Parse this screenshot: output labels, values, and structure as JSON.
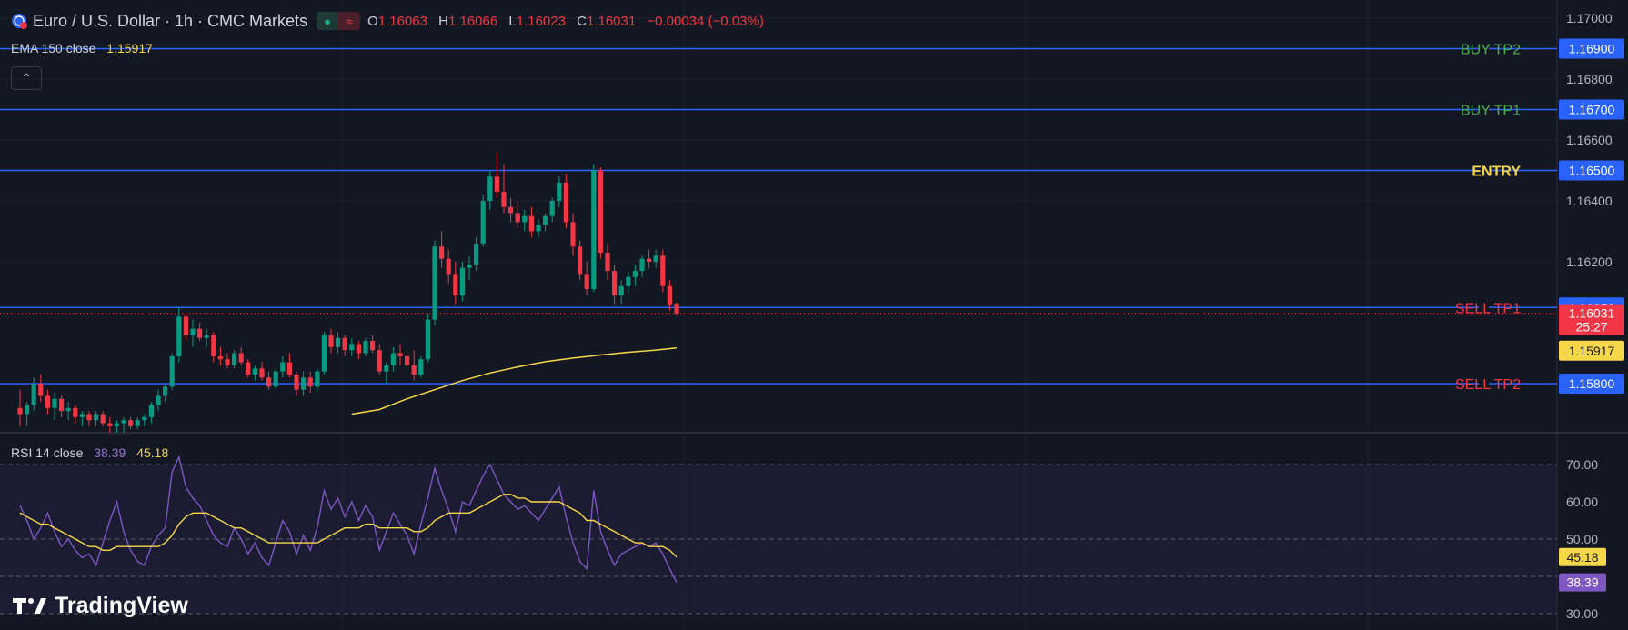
{
  "header": {
    "title": "Euro / U.S. Dollar · 1h · CMC Markets",
    "market_icon": "globe-dollar-icon",
    "open_label": "O",
    "open": "1.16063",
    "high_label": "H",
    "high": "1.16066",
    "low_label": "L",
    "low": "1.16023",
    "close_label": "C",
    "close": "1.16031",
    "change": "−0.00034 (−0.03%)"
  },
  "ema_legend": {
    "label": "EMA 150 close",
    "value": "1.15917"
  },
  "rsi_legend": {
    "label": "RSI 14 close",
    "rsi_value": "38.39",
    "ma_value": "45.18"
  },
  "branding": {
    "name": "TradingView"
  },
  "colors": {
    "background": "#131722",
    "up": "#089981",
    "down": "#f23645",
    "ema": "#f7d74a",
    "level_line": "#2962ff",
    "rsi": "#7e57c2",
    "rsi_ma": "#f7d74a",
    "buy_label": "#4caf50",
    "sell_label": "#f23645",
    "entry_label": "#f7d74a"
  },
  "chart_data": [
    {
      "type": "candlestick",
      "title": "Euro / U.S. Dollar · 1h · CMC Markets",
      "ylim": [
        1.157,
        1.1702
      ],
      "price_ticks": [
        "1.17000",
        "1.16800",
        "1.16600",
        "1.16400",
        "1.16200"
      ],
      "price_tick_values": [
        1.17,
        1.168,
        1.166,
        1.164,
        1.162
      ],
      "levels": [
        {
          "label": "BUY TP2",
          "value": "1.16900",
          "kind": "buy"
        },
        {
          "label": "BUY TP1",
          "value": "1.16700",
          "kind": "buy"
        },
        {
          "label": "ENTRY",
          "value": "1.16500",
          "kind": "entry"
        },
        {
          "label": "SELL TP1",
          "value": "1.16050",
          "kind": "sell"
        },
        {
          "label": "SELL TP2",
          "value": "1.15800",
          "kind": "sell"
        }
      ],
      "current_price": {
        "value": "1.16031",
        "countdown": "25:27"
      },
      "ema": {
        "name": "EMA 150 close",
        "last": "1.15917",
        "points": [
          [
            48,
            1.157
          ],
          [
            52,
            1.15715
          ],
          [
            56,
            1.1575
          ],
          [
            60,
            1.1578
          ],
          [
            64,
            1.1581
          ],
          [
            68,
            1.15835
          ],
          [
            72,
            1.15855
          ],
          [
            76,
            1.15872
          ],
          [
            80,
            1.15884
          ],
          [
            84,
            1.15894
          ],
          [
            88,
            1.15903
          ],
          [
            92,
            1.1591
          ],
          [
            95,
            1.15917
          ]
        ]
      },
      "candles": [
        [
          1.1572,
          1.1578,
          1.1566,
          1.157
        ],
        [
          1.157,
          1.1574,
          1.1566,
          1.1573
        ],
        [
          1.1573,
          1.1582,
          1.1571,
          1.158
        ],
        [
          1.158,
          1.1583,
          1.1574,
          1.1576
        ],
        [
          1.1576,
          1.1578,
          1.157,
          1.1572
        ],
        [
          1.1572,
          1.1577,
          1.1568,
          1.1575
        ],
        [
          1.1575,
          1.1576,
          1.1569,
          1.1571
        ],
        [
          1.1571,
          1.1574,
          1.1568,
          1.1572
        ],
        [
          1.1572,
          1.1573,
          1.1567,
          1.1569
        ],
        [
          1.1569,
          1.1571,
          1.1566,
          1.157
        ],
        [
          1.157,
          1.1571,
          1.1566,
          1.1568
        ],
        [
          1.1568,
          1.1571,
          1.1566,
          1.157
        ],
        [
          1.157,
          1.1571,
          1.1566,
          1.1567
        ],
        [
          1.1567,
          1.1569,
          1.1564,
          1.1566
        ],
        [
          1.1566,
          1.1568,
          1.1563,
          1.1567
        ],
        [
          1.1567,
          1.1569,
          1.1564,
          1.1568
        ],
        [
          1.1568,
          1.1569,
          1.1565,
          1.1566
        ],
        [
          1.1566,
          1.1569,
          1.1565,
          1.1568
        ],
        [
          1.1568,
          1.157,
          1.1566,
          1.1569
        ],
        [
          1.1569,
          1.1574,
          1.1567,
          1.1573
        ],
        [
          1.1573,
          1.1578,
          1.1571,
          1.1576
        ],
        [
          1.1576,
          1.158,
          1.1574,
          1.1579
        ],
        [
          1.1579,
          1.159,
          1.1578,
          1.1589
        ],
        [
          1.1589,
          1.1605,
          1.1587,
          1.1602
        ],
        [
          1.1602,
          1.1603,
          1.1594,
          1.1596
        ],
        [
          1.1596,
          1.1601,
          1.1592,
          1.1598
        ],
        [
          1.1598,
          1.16,
          1.1594,
          1.1595
        ],
        [
          1.1595,
          1.1598,
          1.1592,
          1.1596
        ],
        [
          1.1596,
          1.1597,
          1.1587,
          1.1589
        ],
        [
          1.1589,
          1.1592,
          1.1586,
          1.1588
        ],
        [
          1.1588,
          1.159,
          1.1585,
          1.1586
        ],
        [
          1.1586,
          1.1591,
          1.1585,
          1.159
        ],
        [
          1.159,
          1.1592,
          1.1586,
          1.1587
        ],
        [
          1.1587,
          1.1588,
          1.1582,
          1.1583
        ],
        [
          1.1583,
          1.1586,
          1.1581,
          1.1585
        ],
        [
          1.1585,
          1.1587,
          1.1581,
          1.1582
        ],
        [
          1.1582,
          1.1584,
          1.1578,
          1.1579
        ],
        [
          1.1579,
          1.1585,
          1.1578,
          1.1584
        ],
        [
          1.1584,
          1.1589,
          1.1582,
          1.1587
        ],
        [
          1.1587,
          1.159,
          1.1582,
          1.1583
        ],
        [
          1.1583,
          1.1584,
          1.1576,
          1.1578
        ],
        [
          1.1578,
          1.1584,
          1.1576,
          1.1582
        ],
        [
          1.1582,
          1.1584,
          1.1577,
          1.1579
        ],
        [
          1.1579,
          1.1585,
          1.1577,
          1.1584
        ],
        [
          1.1584,
          1.1597,
          1.1583,
          1.1596
        ],
        [
          1.1596,
          1.1598,
          1.159,
          1.1592
        ],
        [
          1.1592,
          1.1597,
          1.159,
          1.1595
        ],
        [
          1.1595,
          1.1596,
          1.1589,
          1.1591
        ],
        [
          1.1591,
          1.1595,
          1.1589,
          1.1593
        ],
        [
          1.1593,
          1.1594,
          1.1588,
          1.159
        ],
        [
          1.159,
          1.1595,
          1.1589,
          1.1594
        ],
        [
          1.1594,
          1.1596,
          1.159,
          1.1591
        ],
        [
          1.1591,
          1.1593,
          1.1583,
          1.1584
        ],
        [
          1.1584,
          1.1587,
          1.158,
          1.1586
        ],
        [
          1.1586,
          1.1592,
          1.1584,
          1.159
        ],
        [
          1.159,
          1.1593,
          1.1586,
          1.1589
        ],
        [
          1.1589,
          1.1591,
          1.1585,
          1.1586
        ],
        [
          1.1586,
          1.1591,
          1.1581,
          1.1583
        ],
        [
          1.1583,
          1.1589,
          1.1582,
          1.1588
        ],
        [
          1.1588,
          1.1603,
          1.1587,
          1.1601
        ],
        [
          1.1601,
          1.1627,
          1.1599,
          1.1625
        ],
        [
          1.1625,
          1.163,
          1.1618,
          1.1621
        ],
        [
          1.1621,
          1.1624,
          1.1613,
          1.1616
        ],
        [
          1.1616,
          1.162,
          1.1606,
          1.1609
        ],
        [
          1.1609,
          1.162,
          1.1607,
          1.1618
        ],
        [
          1.1618,
          1.1622,
          1.1614,
          1.1619
        ],
        [
          1.1619,
          1.1628,
          1.1617,
          1.1626
        ],
        [
          1.1626,
          1.1642,
          1.1625,
          1.164
        ],
        [
          1.164,
          1.165,
          1.1637,
          1.1648
        ],
        [
          1.1648,
          1.1656,
          1.1641,
          1.1643
        ],
        [
          1.1643,
          1.1652,
          1.1636,
          1.1638
        ],
        [
          1.1638,
          1.1641,
          1.1633,
          1.1636
        ],
        [
          1.1636,
          1.164,
          1.1631,
          1.1633
        ],
        [
          1.1633,
          1.1637,
          1.163,
          1.1635
        ],
        [
          1.1635,
          1.1638,
          1.1628,
          1.163
        ],
        [
          1.163,
          1.1634,
          1.1628,
          1.1632
        ],
        [
          1.1632,
          1.1636,
          1.163,
          1.1635
        ],
        [
          1.1635,
          1.1641,
          1.1633,
          1.164
        ],
        [
          1.164,
          1.1648,
          1.1638,
          1.1646
        ],
        [
          1.1646,
          1.1649,
          1.1631,
          1.1633
        ],
        [
          1.1633,
          1.1636,
          1.1622,
          1.1625
        ],
        [
          1.1625,
          1.1627,
          1.1614,
          1.1616
        ],
        [
          1.1616,
          1.162,
          1.1609,
          1.1611
        ],
        [
          1.1611,
          1.1652,
          1.161,
          1.165
        ],
        [
          1.165,
          1.1651,
          1.1621,
          1.1623
        ],
        [
          1.1623,
          1.1626,
          1.1614,
          1.1617
        ],
        [
          1.1617,
          1.1619,
          1.1606,
          1.1609
        ],
        [
          1.1609,
          1.1614,
          1.1606,
          1.1612
        ],
        [
          1.1612,
          1.1617,
          1.161,
          1.1615
        ],
        [
          1.1615,
          1.1619,
          1.1612,
          1.1617
        ],
        [
          1.1617,
          1.1622,
          1.1615,
          1.1621
        ],
        [
          1.1621,
          1.1624,
          1.1618,
          1.162
        ],
        [
          1.162,
          1.1624,
          1.1618,
          1.1622
        ],
        [
          1.1622,
          1.1624,
          1.161,
          1.1612
        ],
        [
          1.1612,
          1.1614,
          1.1604,
          1.1606
        ],
        [
          1.16063,
          1.16066,
          1.16023,
          1.16031
        ]
      ]
    },
    {
      "type": "line",
      "title": "RSI 14 close",
      "ylim": [
        28,
        72
      ],
      "y_ticks": [
        "70.00",
        "60.00",
        "50.00",
        "30.00"
      ],
      "y_tick_values": [
        70,
        60,
        50,
        30
      ],
      "dashed_levels": [
        70,
        50,
        40,
        30
      ],
      "series": [
        {
          "name": "RSI 14 close",
          "color": "#7e57c2",
          "last": "38.39",
          "values": [
            59,
            55,
            50,
            53,
            57,
            52,
            48,
            50,
            47,
            45,
            46,
            43,
            49,
            55,
            60,
            52,
            47,
            44,
            43,
            48,
            51,
            53,
            68,
            72,
            64,
            61,
            59,
            55,
            51,
            49,
            48,
            53,
            50,
            46,
            49,
            45,
            43,
            49,
            55,
            52,
            46,
            51,
            47,
            53,
            63,
            58,
            61,
            56,
            60,
            55,
            59,
            56,
            47,
            52,
            57,
            54,
            51,
            46,
            54,
            61,
            69,
            63,
            58,
            52,
            60,
            59,
            63,
            67,
            70,
            66,
            62,
            60,
            58,
            59,
            57,
            55,
            58,
            61,
            64,
            56,
            49,
            44,
            42,
            63,
            52,
            47,
            43,
            46,
            47,
            48,
            49,
            48,
            49,
            46,
            42,
            38.39
          ]
        },
        {
          "name": "RSI MA",
          "color": "#f7d74a",
          "last": "45.18",
          "values": [
            57,
            56,
            55,
            54,
            54,
            53,
            52,
            51,
            50,
            49,
            48,
            48,
            47,
            47,
            48,
            48,
            48,
            48,
            48,
            48,
            48,
            49,
            51,
            54,
            56,
            57,
            57,
            57,
            56,
            55,
            54,
            53,
            53,
            52,
            51,
            50,
            49,
            49,
            49,
            49,
            49,
            49,
            49,
            49,
            50,
            51,
            52,
            53,
            53,
            53,
            54,
            54,
            53,
            53,
            53,
            53,
            53,
            52,
            52,
            53,
            55,
            56,
            57,
            57,
            57,
            57,
            58,
            59,
            60,
            61,
            62,
            62,
            61,
            61,
            60,
            60,
            60,
            60,
            60,
            59,
            58,
            57,
            55,
            55,
            54,
            53,
            52,
            51,
            50,
            49,
            49,
            48,
            48,
            48,
            47,
            45.18
          ]
        }
      ]
    }
  ]
}
